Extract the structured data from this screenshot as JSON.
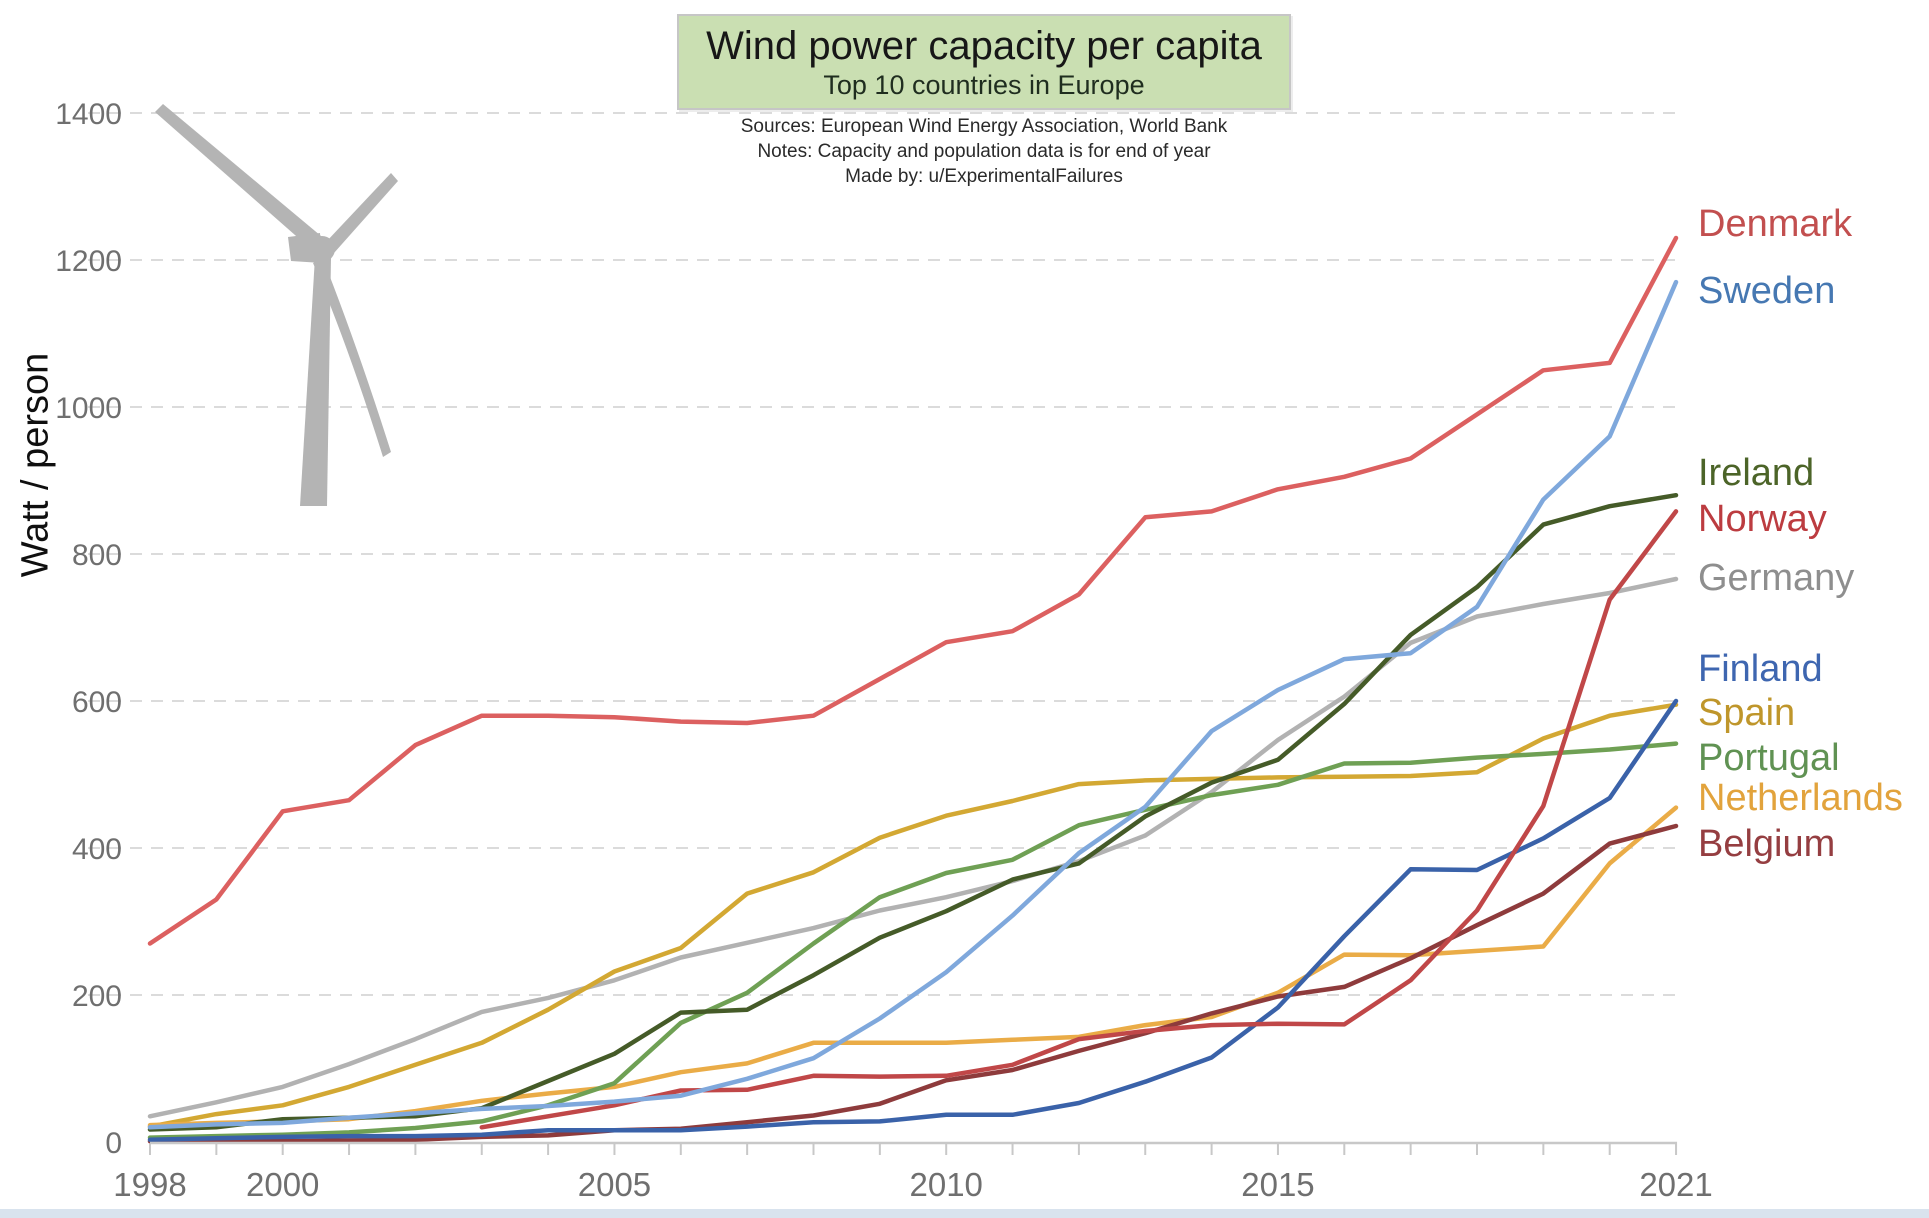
{
  "header": {
    "title": "Wind power capacity per capita",
    "subtitle": "Top 10 countries in Europe",
    "sources": "Sources: European Wind Energy Association, World Bank",
    "notes": "Notes: Capacity and population data is for end of year",
    "made_by": "Made by: u/ExperimentalFailures",
    "box_bg": "#cadfb2",
    "box_border": "#c6c6c6"
  },
  "chart_data": {
    "type": "line",
    "title": "Wind power capacity per capita",
    "subtitle": "Top 10 countries in Europe",
    "xlabel": "",
    "ylabel": "Watt / person",
    "xlim": [
      1998,
      2021
    ],
    "ylim": [
      0,
      1400
    ],
    "grid": "horizontal-dashed",
    "legend_position": "right",
    "x": [
      1998,
      1999,
      2000,
      2001,
      2002,
      2003,
      2004,
      2005,
      2006,
      2007,
      2008,
      2009,
      2010,
      2011,
      2012,
      2013,
      2014,
      2015,
      2016,
      2017,
      2018,
      2019,
      2020,
      2021
    ],
    "x_tick_labels": [
      "1998",
      "2000",
      "2005",
      "2010",
      "2015",
      "2021"
    ],
    "x_tick_label_years": [
      1998,
      2000,
      2005,
      2010,
      2015,
      2021
    ],
    "y_ticks": [
      0,
      200,
      400,
      600,
      800,
      1000,
      1200,
      1400
    ],
    "series": [
      {
        "name": "Denmark",
        "color": "#dc6060",
        "label_color": "#c24f4f",
        "label_y": 223,
        "values": [
          270,
          330,
          450,
          465,
          540,
          580,
          580,
          578,
          572,
          570,
          580,
          630,
          680,
          695,
          745,
          850,
          858,
          888,
          905,
          930,
          990,
          1050,
          1060,
          1230
        ]
      },
      {
        "name": "Sweden",
        "color": "#7fa8dc",
        "label_color": "#4678b2",
        "label_y": 290,
        "values": [
          20,
          24,
          26,
          33,
          39,
          45,
          49,
          55,
          63,
          86,
          114,
          168,
          231,
          308,
          393,
          456,
          559,
          615,
          657,
          665,
          728,
          874,
          960,
          1170
        ]
      },
      {
        "name": "Ireland",
        "color": "#455b28",
        "label_color": "#4c6428",
        "label_y": 472,
        "values": [
          17,
          20,
          31,
          33,
          35,
          46,
          83,
          120,
          176,
          180,
          227,
          278,
          314,
          357,
          379,
          443,
          489,
          520,
          596,
          690,
          755,
          840,
          865,
          880
        ]
      },
      {
        "name": "Norway",
        "color": "#c04748",
        "label_color": "#bc3c40",
        "label_y": 518,
        "values": [
          null,
          null,
          null,
          null,
          null,
          20,
          35,
          50,
          70,
          71,
          90,
          89,
          90,
          105,
          140,
          151,
          159,
          161,
          160,
          220,
          315,
          457,
          738,
          858
        ]
      },
      {
        "name": "Germany",
        "color": "#b2b2b2",
        "label_color": "#8e8e8e",
        "label_y": 577,
        "values": [
          35,
          54,
          75,
          106,
          140,
          177,
          196,
          220,
          251,
          271,
          291,
          315,
          333,
          355,
          382,
          417,
          476,
          547,
          606,
          679,
          715,
          732,
          747,
          766
        ]
      },
      {
        "name": "Finland",
        "color": "#3a62a9",
        "label_color": "#3e66b0",
        "label_y": 668,
        "values": [
          3,
          5,
          7,
          8,
          8,
          10,
          16,
          16,
          16,
          21,
          27,
          28,
          37,
          37,
          53,
          82,
          115,
          183,
          280,
          371,
          370,
          413,
          468,
          600
        ]
      },
      {
        "name": "Spain",
        "color": "#d3a833",
        "label_color": "#bf962b",
        "label_y": 712,
        "values": [
          21,
          38,
          50,
          75,
          105,
          135,
          180,
          232,
          264,
          338,
          367,
          414,
          444,
          464,
          487,
          492,
          494,
          496,
          497,
          498,
          503,
          549,
          580,
          595
        ]
      },
      {
        "name": "Portugal",
        "color": "#6fa054",
        "label_color": "#609253",
        "label_y": 757,
        "values": [
          6,
          8,
          10,
          13,
          19,
          28,
          50,
          80,
          162,
          203,
          270,
          333,
          366,
          384,
          431,
          452,
          472,
          486,
          515,
          516,
          523,
          528,
          534,
          542
        ]
      },
      {
        "name": "Netherlands",
        "color": "#eaac47",
        "label_color": "#e2a33c",
        "label_y": 797,
        "values": [
          23,
          26,
          28,
          31,
          42,
          56,
          66,
          75,
          95,
          107,
          135,
          135,
          135,
          139,
          143,
          159,
          170,
          203,
          255,
          254,
          260,
          266,
          379,
          455
        ]
      },
      {
        "name": "Belgium",
        "color": "#8e3b3c",
        "label_color": "#953e41",
        "label_y": 843,
        "values": [
          1,
          1,
          1,
          2,
          3,
          7,
          9,
          16,
          18,
          27,
          36,
          52,
          84,
          98,
          124,
          148,
          175,
          198,
          211,
          250,
          295,
          338,
          406,
          430
        ]
      }
    ],
    "draw_order": [
      "Germany",
      "Spain",
      "Netherlands",
      "Portugal",
      "Belgium",
      "Finland",
      "Norway",
      "Ireland",
      "Sweden",
      "Denmark"
    ],
    "decor": {
      "turbine_color": "#b4b4b4",
      "gridline_color": "#dbdbdb",
      "axis_color": "#c8c8c8",
      "tick_label_color": "#6f6f6f",
      "bottom_bar_color": "#d9e3ee"
    }
  }
}
